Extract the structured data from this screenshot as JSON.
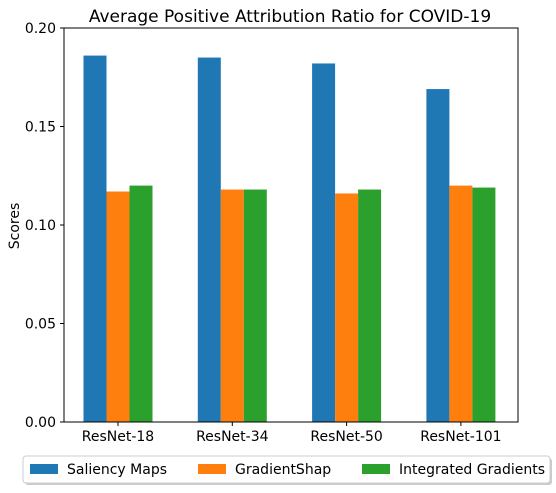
{
  "chart_data": {
    "type": "bar",
    "title": "Average Positive Attribution Ratio for COVID-19",
    "xlabel": "",
    "ylabel": "Scores",
    "categories": [
      "ResNet-18",
      "ResNet-34",
      "ResNet-50",
      "ResNet-101"
    ],
    "series": [
      {
        "name": "Saliency Maps",
        "color": "#1f77b4",
        "values": [
          0.186,
          0.185,
          0.182,
          0.169
        ]
      },
      {
        "name": "GradientShap",
        "color": "#ff7f0e",
        "values": [
          0.117,
          0.118,
          0.116,
          0.12
        ]
      },
      {
        "name": "Integrated Gradients",
        "color": "#2ca02c",
        "values": [
          0.12,
          0.118,
          0.118,
          0.119
        ]
      }
    ],
    "ylim": [
      0,
      0.2
    ],
    "yticks": [
      "0.00",
      "0.05",
      "0.10",
      "0.15",
      "0.20"
    ],
    "grid": false,
    "legend_position": "bottom"
  }
}
